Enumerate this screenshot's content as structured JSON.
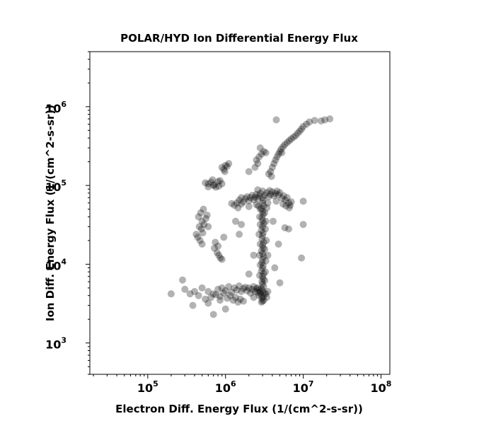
{
  "chart_data": {
    "type": "scatter",
    "title": "POLAR/HYD  Ion Differential Energy Flux",
    "xlabel": "Electron Diff. Energy Flux (1/(cm^2-s-sr))",
    "ylabel": "Ion Diff. Energy Flux (1/(cm^2-s-sr))",
    "xscale": "log",
    "yscale": "log",
    "xlim": [
      18000,
      130000000
    ],
    "ylim": [
      400,
      5000000
    ],
    "x_ticks": [
      {
        "value": 100000,
        "base": "10",
        "exp": "5"
      },
      {
        "value": 1000000,
        "base": "10",
        "exp": "6"
      },
      {
        "value": 10000000,
        "base": "10",
        "exp": "7"
      },
      {
        "value": 100000000,
        "base": "10",
        "exp": "8"
      }
    ],
    "y_ticks": [
      {
        "value": 1000,
        "base": "10",
        "exp": "3"
      },
      {
        "value": 10000,
        "base": "10",
        "exp": "4"
      },
      {
        "value": 100000,
        "base": "10",
        "exp": "5"
      },
      {
        "value": 1000000,
        "base": "10",
        "exp": "6"
      }
    ],
    "grid": false,
    "marker_color": "#000000",
    "marker_alpha": 0.3,
    "points": [
      [
        2900000,
        3300
      ],
      [
        3000000,
        3400
      ],
      [
        3100000,
        3500
      ],
      [
        2950000,
        3700
      ],
      [
        3050000,
        3900
      ],
      [
        2850000,
        4100
      ],
      [
        3150000,
        4300
      ],
      [
        3000000,
        4600
      ],
      [
        2900000,
        4900
      ],
      [
        3100000,
        5200
      ],
      [
        3000000,
        5600
      ],
      [
        2950000,
        6000
      ],
      [
        3050000,
        6500
      ],
      [
        3000000,
        7000
      ],
      [
        3100000,
        7600
      ],
      [
        2900000,
        8200
      ],
      [
        3000000,
        8900
      ],
      [
        3050000,
        9600
      ],
      [
        2950000,
        10500
      ],
      [
        3000000,
        11500
      ],
      [
        3100000,
        12500
      ],
      [
        3000000,
        13600
      ],
      [
        2900000,
        14800
      ],
      [
        3050000,
        16000
      ],
      [
        3000000,
        17500
      ],
      [
        3100000,
        19000
      ],
      [
        2950000,
        21000
      ],
      [
        3000000,
        23000
      ],
      [
        3050000,
        25000
      ],
      [
        2900000,
        27000
      ],
      [
        3000000,
        30000
      ],
      [
        3100000,
        33000
      ],
      [
        3000000,
        36000
      ],
      [
        2950000,
        39000
      ],
      [
        3050000,
        43000
      ],
      [
        3000000,
        47000
      ],
      [
        2900000,
        51000
      ],
      [
        3100000,
        55000
      ],
      [
        3000000,
        60000
      ],
      [
        3050000,
        65000
      ],
      [
        2700000,
        4000
      ],
      [
        2800000,
        4400
      ],
      [
        3300000,
        4200
      ],
      [
        3400000,
        3800
      ],
      [
        3500000,
        4500
      ],
      [
        2600000,
        5000
      ],
      [
        3200000,
        6200
      ],
      [
        2750000,
        7200
      ],
      [
        3250000,
        8000
      ],
      [
        2800000,
        9800
      ],
      [
        3300000,
        11000
      ],
      [
        2750000,
        13000
      ],
      [
        3200000,
        15500
      ],
      [
        2800000,
        18000
      ],
      [
        3350000,
        20000
      ],
      [
        2700000,
        24000
      ],
      [
        3250000,
        28000
      ],
      [
        2800000,
        32000
      ],
      [
        3300000,
        35000
      ],
      [
        2750000,
        40000
      ],
      [
        3200000,
        45000
      ],
      [
        2800000,
        50000
      ],
      [
        3400000,
        52000
      ],
      [
        2650000,
        55000
      ],
      [
        1400000,
        60000
      ],
      [
        1500000,
        65000
      ],
      [
        1600000,
        70000
      ],
      [
        1700000,
        62000
      ],
      [
        1800000,
        68000
      ],
      [
        1900000,
        72000
      ],
      [
        2000000,
        64000
      ],
      [
        2100000,
        70000
      ],
      [
        2200000,
        75000
      ],
      [
        2300000,
        66000
      ],
      [
        2400000,
        71000
      ],
      [
        2500000,
        77000
      ],
      [
        2600000,
        68000
      ],
      [
        2700000,
        73000
      ],
      [
        2800000,
        79000
      ],
      [
        3000000,
        70000
      ],
      [
        3200000,
        75000
      ],
      [
        3400000,
        81000
      ],
      [
        3600000,
        72000
      ],
      [
        3800000,
        77000
      ],
      [
        4000000,
        83000
      ],
      [
        4200000,
        74000
      ],
      [
        4400000,
        79000
      ],
      [
        4600000,
        85000
      ],
      [
        4800000,
        76000
      ],
      [
        5000000,
        81000
      ],
      [
        5300000,
        69000
      ],
      [
        5600000,
        74000
      ],
      [
        5900000,
        65000
      ],
      [
        6200000,
        70000
      ],
      [
        6500000,
        60000
      ],
      [
        6800000,
        56000
      ],
      [
        7000000,
        62000
      ],
      [
        1300000,
        56000
      ],
      [
        1450000,
        52000
      ],
      [
        1600000,
        58000
      ],
      [
        2000000,
        54000
      ],
      [
        2500000,
        57000
      ],
      [
        3500000,
        60000
      ],
      [
        4500000,
        63000
      ],
      [
        5500000,
        58000
      ],
      [
        6000000,
        55000
      ],
      [
        6600000,
        52000
      ],
      [
        1200000,
        59000
      ],
      [
        3000000,
        85000
      ],
      [
        2600000,
        88000
      ],
      [
        3700000,
        86000
      ],
      [
        700000,
        100000
      ],
      [
        650000,
        110000
      ],
      [
        600000,
        105000
      ],
      [
        750000,
        95000
      ],
      [
        800000,
        112000
      ],
      [
        680000,
        118000
      ],
      [
        720000,
        102000
      ],
      [
        820000,
        98000
      ],
      [
        550000,
        108000
      ],
      [
        600000,
        96000
      ],
      [
        850000,
        115000
      ],
      [
        900000,
        105000
      ],
      [
        450000,
        40000
      ],
      [
        480000,
        45000
      ],
      [
        500000,
        35000
      ],
      [
        520000,
        50000
      ],
      [
        460000,
        30000
      ],
      [
        490000,
        28000
      ],
      [
        510000,
        25000
      ],
      [
        440000,
        22000
      ],
      [
        470000,
        20000
      ],
      [
        500000,
        18000
      ],
      [
        530000,
        32000
      ],
      [
        560000,
        38000
      ],
      [
        420000,
        24000
      ],
      [
        600000,
        30000
      ],
      [
        580000,
        42000
      ],
      [
        720000,
        16000
      ],
      [
        780000,
        14000
      ],
      [
        820000,
        13000
      ],
      [
        860000,
        12000
      ],
      [
        900000,
        11500
      ],
      [
        800000,
        17000
      ],
      [
        740000,
        19000
      ],
      [
        950000,
        22000
      ],
      [
        950000,
        160000
      ],
      [
        1000000,
        180000
      ],
      [
        1050000,
        175000
      ],
      [
        980000,
        150000
      ],
      [
        1100000,
        190000
      ],
      [
        900000,
        170000
      ],
      [
        3800000,
        150000
      ],
      [
        4000000,
        170000
      ],
      [
        4200000,
        190000
      ],
      [
        4400000,
        210000
      ],
      [
        4600000,
        230000
      ],
      [
        4800000,
        250000
      ],
      [
        5000000,
        270000
      ],
      [
        5200000,
        290000
      ],
      [
        5500000,
        310000
      ],
      [
        5800000,
        330000
      ],
      [
        6200000,
        350000
      ],
      [
        6600000,
        370000
      ],
      [
        7000000,
        390000
      ],
      [
        7500000,
        410000
      ],
      [
        8000000,
        430000
      ],
      [
        8500000,
        460000
      ],
      [
        9000000,
        490000
      ],
      [
        9500000,
        520000
      ],
      [
        10000000,
        560000
      ],
      [
        11000000,
        600000
      ],
      [
        12000000,
        640000
      ],
      [
        14000000,
        670000
      ],
      [
        17000000,
        660000
      ],
      [
        19000000,
        680000
      ],
      [
        22000000,
        700000
      ],
      [
        3600000,
        140000
      ],
      [
        3900000,
        130000
      ],
      [
        5300000,
        260000
      ],
      [
        2500000,
        210000
      ],
      [
        2700000,
        230000
      ],
      [
        2900000,
        250000
      ],
      [
        3100000,
        270000
      ],
      [
        3300000,
        260000
      ],
      [
        2600000,
        190000
      ],
      [
        2400000,
        170000
      ],
      [
        2800000,
        300000
      ],
      [
        600000,
        4500
      ],
      [
        700000,
        4200
      ],
      [
        800000,
        4800
      ],
      [
        900000,
        5000
      ],
      [
        1000000,
        4600
      ],
      [
        1100000,
        5200
      ],
      [
        1200000,
        4400
      ],
      [
        1300000,
        5000
      ],
      [
        1400000,
        4700
      ],
      [
        1500000,
        5300
      ],
      [
        1600000,
        4500
      ],
      [
        1700000,
        4900
      ],
      [
        1800000,
        5100
      ],
      [
        1900000,
        4600
      ],
      [
        2000000,
        5000
      ],
      [
        2100000,
        4300
      ],
      [
        2200000,
        4800
      ],
      [
        2300000,
        5200
      ],
      [
        2400000,
        4500
      ],
      [
        2500000,
        4900
      ],
      [
        2600000,
        4400
      ],
      [
        2700000,
        4700
      ],
      [
        400000,
        4500
      ],
      [
        350000,
        4200
      ],
      [
        300000,
        4800
      ],
      [
        280000,
        6300
      ],
      [
        200000,
        4200
      ],
      [
        450000,
        4000
      ],
      [
        500000,
        5000
      ],
      [
        550000,
        3600
      ],
      [
        650000,
        3800
      ],
      [
        750000,
        4100
      ],
      [
        850000,
        3900
      ],
      [
        950000,
        4300
      ],
      [
        1050000,
        3700
      ],
      [
        1150000,
        4000
      ],
      [
        1250000,
        3500
      ],
      [
        1350000,
        3800
      ],
      [
        1450000,
        3300
      ],
      [
        1550000,
        3600
      ],
      [
        380000,
        3000
      ],
      [
        700000,
        2300
      ],
      [
        1000000,
        2700
      ],
      [
        600000,
        3200
      ],
      [
        850000,
        3500
      ],
      [
        1700000,
        3400
      ],
      [
        4500000,
        680000
      ],
      [
        10000000,
        63000
      ],
      [
        10000000,
        32000
      ],
      [
        9500000,
        12000
      ],
      [
        5000000,
        5800
      ],
      [
        2300000,
        3800
      ],
      [
        2000000,
        7500
      ],
      [
        1600000,
        32000
      ],
      [
        3500000,
        13000
      ],
      [
        2000000,
        150000
      ],
      [
        4300000,
        9000
      ],
      [
        4800000,
        18000
      ],
      [
        6500000,
        28000
      ],
      [
        1350000,
        35000
      ],
      [
        2300000,
        13000
      ],
      [
        5800000,
        29000
      ],
      [
        1500000,
        24000
      ],
      [
        4100000,
        35000
      ]
    ]
  }
}
